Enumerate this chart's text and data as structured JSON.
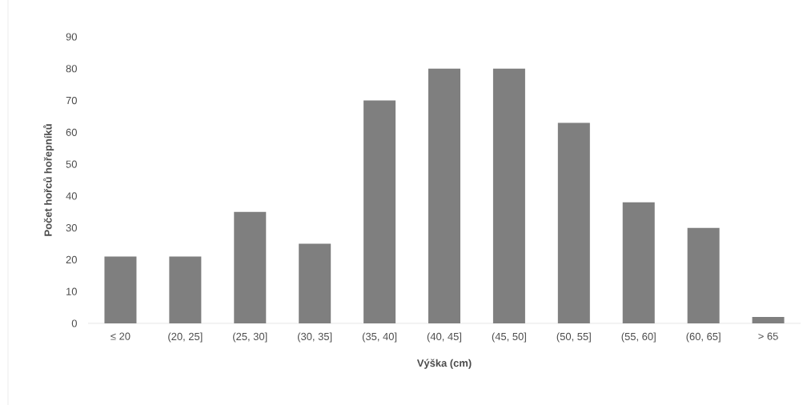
{
  "chart_data": {
    "type": "bar",
    "xlabel": "Výška (cm)",
    "ylabel": "Počet hořců hořepníků",
    "categories": [
      "≤ 20",
      "(20, 25]",
      "(25, 30]",
      "(30, 35]",
      "(35, 40]",
      "(40, 45]",
      "(45, 50]",
      "(50, 55]",
      "(55, 60]",
      "(60, 65]",
      "> 65"
    ],
    "values": [
      21,
      21,
      35,
      25,
      70,
      80,
      80,
      63,
      38,
      30,
      2
    ],
    "color": "#7f7f7f",
    "ylim": [
      0,
      90
    ],
    "yticks": [
      0,
      10,
      20,
      30,
      40,
      50,
      60,
      70,
      80,
      90
    ]
  }
}
